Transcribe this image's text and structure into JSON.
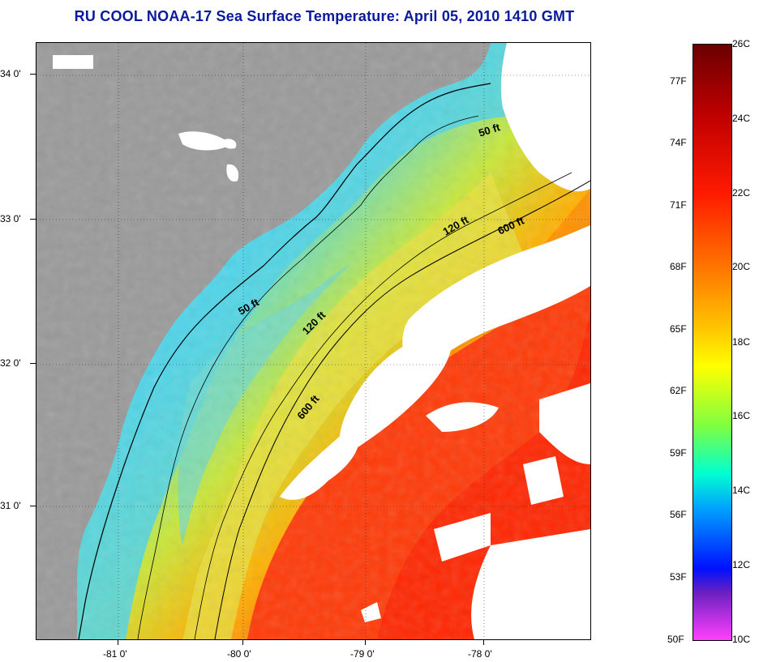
{
  "title": "RU COOL  NOAA-17  Sea Surface Temperature:  April 05, 2010 1410 GMT",
  "latitude_labels": [
    "34 0'",
    "33 0'",
    "32 0'",
    "31 0'"
  ],
  "longitude_labels": [
    "-81 0'",
    "-80 0'",
    "-79 0'",
    "-78 0'"
  ],
  "contour_labels": [
    "50 ft",
    "120 ft",
    "600 ft",
    "50 ft",
    "120 ft",
    "600 ft"
  ],
  "colorbar": {
    "celsius_labels": [
      "26C",
      "24C",
      "22C",
      "20C",
      "18C",
      "16C",
      "14C",
      "12C",
      "10C"
    ],
    "fahrenheit_labels": [
      "77F",
      "74F",
      "71F",
      "68F",
      "65F",
      "62F",
      "59F",
      "56F",
      "53F",
      "50F"
    ],
    "colors": [
      "#6b0000",
      "#c00000",
      "#ff1a00",
      "#ff7a00",
      "#ffc800",
      "#ffff00",
      "#7fff40",
      "#00ffd0",
      "#00a0ff",
      "#0010ff",
      "#6a20c0",
      "#ff40ff"
    ]
  },
  "colors": {
    "land": "#9a9a9a",
    "cloud": "#ffffff",
    "title": "#0a1a9c"
  }
}
